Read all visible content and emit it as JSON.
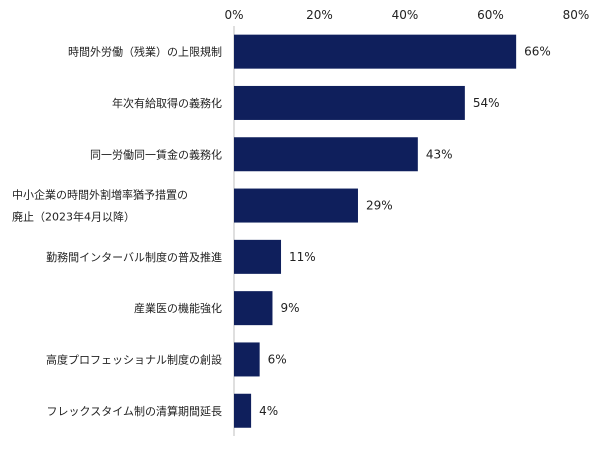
{
  "chart_data": {
    "type": "bar",
    "orientation": "horizontal",
    "title": "",
    "xlabel": "",
    "ylabel": "",
    "xlim": [
      0,
      80
    ],
    "ticks": [
      0,
      20,
      40,
      60,
      80
    ],
    "tick_labels": [
      "0%",
      "20%",
      "40%",
      "60%",
      "80%"
    ],
    "categories": [
      [
        "時間外労働（残業）の上限規制"
      ],
      [
        "年次有給取得の義務化"
      ],
      [
        "同一労働同一賃金の義務化"
      ],
      [
        "中小企業の時間外割増率猶予措置の",
        "廃止（2023年4月以降）"
      ],
      [
        "勤務間インターバル制度の普及推進"
      ],
      [
        "産業医の機能強化"
      ],
      [
        "高度プロフェッショナル制度の創設"
      ],
      [
        "フレックスタイム制の清算期間延長"
      ]
    ],
    "values": [
      66,
      54,
      43,
      29,
      11,
      9,
      6,
      4
    ],
    "value_labels": [
      "66%",
      "54%",
      "43%",
      "29%",
      "11%",
      "9%",
      "6%",
      "4%"
    ],
    "bar_color": "#0f1f5c",
    "grid": false,
    "legend": "none"
  }
}
